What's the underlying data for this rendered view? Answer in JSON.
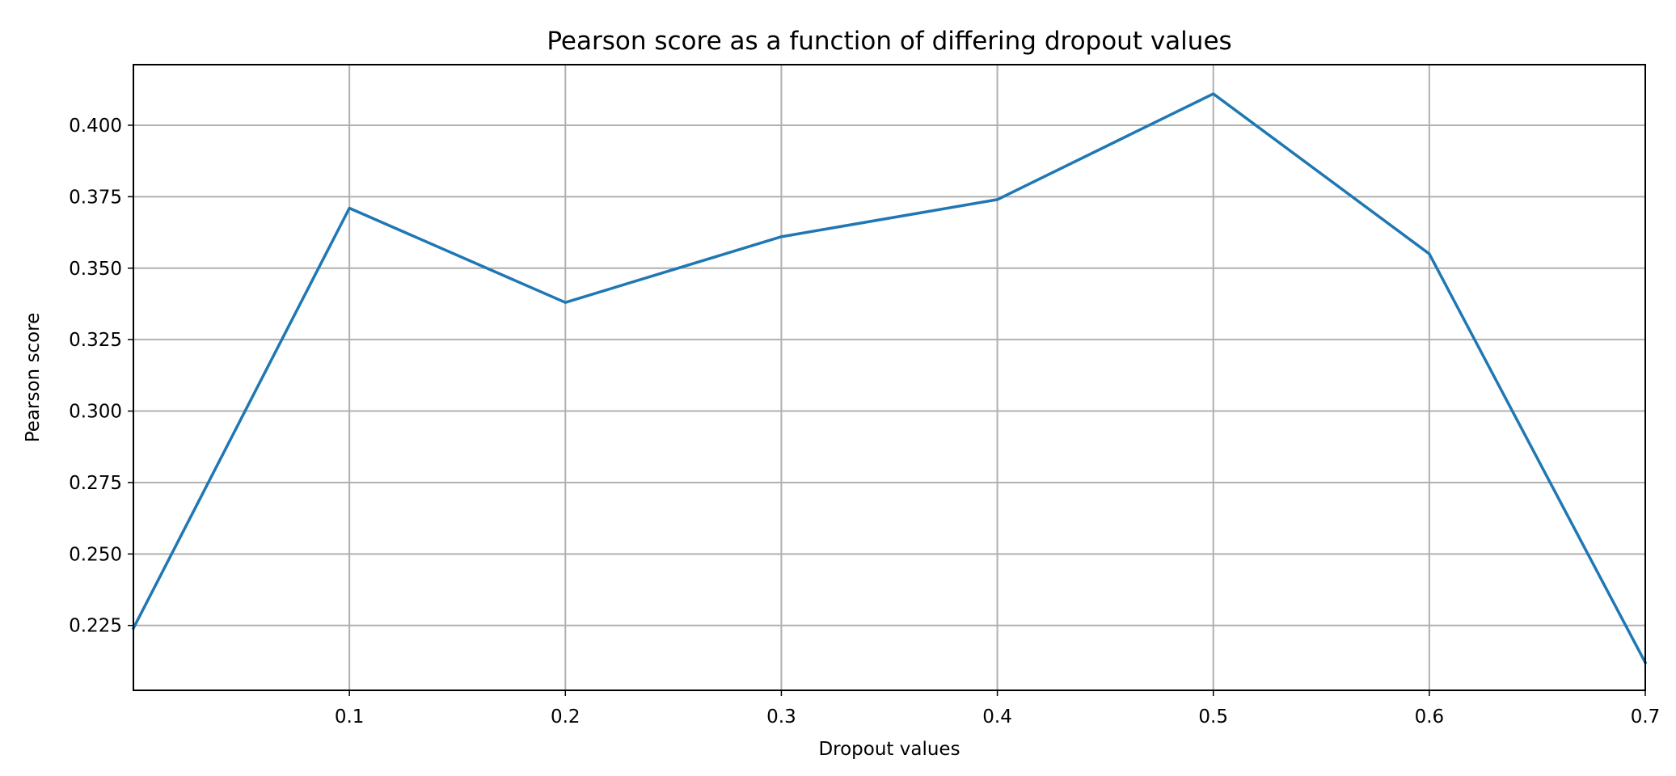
{
  "chart_data": {
    "type": "line",
    "title": "Pearson score as a function of differing dropout values",
    "xlabel": "Dropout values",
    "ylabel": "Pearson score",
    "xlim": [
      0.0,
      0.7
    ],
    "ylim": [
      0.2023,
      0.4212
    ],
    "grid": true,
    "x_ticks": [
      0.1,
      0.2,
      0.3,
      0.4,
      0.5,
      0.6,
      0.7
    ],
    "x_tick_labels": [
      "0.1",
      "0.2",
      "0.3",
      "0.4",
      "0.5",
      "0.6",
      "0.7"
    ],
    "y_ticks": [
      0.225,
      0.25,
      0.275,
      0.3,
      0.325,
      0.35,
      0.375,
      0.4
    ],
    "y_tick_labels": [
      "0.225",
      "0.250",
      "0.275",
      "0.300",
      "0.325",
      "0.350",
      "0.375",
      "0.400"
    ],
    "x": [
      0.0,
      0.1,
      0.2,
      0.3,
      0.4,
      0.5,
      0.6,
      0.7
    ],
    "series": [
      {
        "values": [
          0.224,
          0.371,
          0.338,
          0.361,
          0.374,
          0.411,
          0.355,
          0.212
        ],
        "color": "#1f77b4"
      }
    ]
  }
}
